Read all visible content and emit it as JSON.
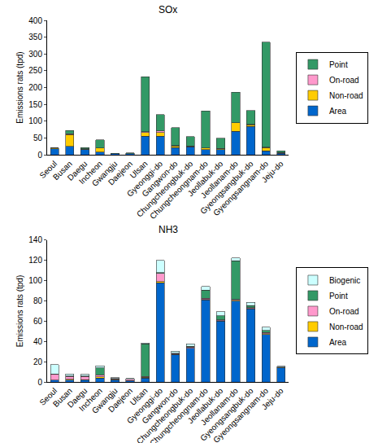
{
  "chart_data": [
    {
      "type": "bar",
      "title": "SOx",
      "y_label": "Emissions rats (tpd)",
      "stacked": true,
      "grid": false,
      "legend": "right",
      "categories": [
        "Seoul",
        "Busan",
        "Daegu",
        "Incheon",
        "Gwangju",
        "Daejeon",
        "Ulsan",
        "Gyeonggi-do",
        "Gangwon-do",
        "Chungcheongbuk-do",
        "Chungcheongnam-do",
        "Jeollabuk-do",
        "Jeollanam-do",
        "Gyeongsangbuk-do",
        "Gyeongsangnam-do",
        "Jeju-do"
      ],
      "ylim": [
        0,
        400
      ],
      "yticks": [
        0,
        50,
        100,
        150,
        200,
        250,
        300,
        350,
        400
      ],
      "series": [
        {
          "name": "Area",
          "color": "#0066cc",
          "values": [
            18,
            25,
            15,
            8,
            3,
            3,
            55,
            55,
            22,
            24,
            15,
            15,
            70,
            85,
            12,
            5
          ]
        },
        {
          "name": "Non-road",
          "color": "#ffcc00",
          "values": [
            2,
            35,
            2,
            12,
            0.5,
            0.5,
            12,
            12,
            5,
            2,
            5,
            3,
            25,
            5,
            10,
            2
          ]
        },
        {
          "name": "On-road",
          "color": "#ff99cc",
          "values": [
            1,
            3,
            1,
            1,
            0.5,
            0.5,
            2,
            4,
            1,
            1,
            1,
            1,
            1,
            1,
            1,
            0.5
          ]
        },
        {
          "name": "Point",
          "color": "#339966",
          "values": [
            0,
            10,
            4,
            24,
            1,
            2,
            163,
            49,
            53,
            27,
            110,
            31,
            90,
            41,
            312,
            4
          ]
        }
      ]
    },
    {
      "type": "bar",
      "title": "NH3",
      "y_label": "Emissions rats (tpd)",
      "stacked": true,
      "grid": false,
      "legend": "right",
      "categories": [
        "Seoul",
        "Busan",
        "Daegu",
        "Incheon",
        "Gwangju",
        "Daejeon",
        "Ulsan",
        "Gyeonggi-do",
        "Gangwon-do",
        "Chungcheongbuk-do",
        "Chungcheongnam-do",
        "Jeollabuk-do",
        "Jeollanam-do",
        "Gyeongsangbuk-do",
        "Gyeongsangnam-do",
        "Jeju-do"
      ],
      "ylim": [
        0,
        140
      ],
      "yticks": [
        0,
        20,
        40,
        60,
        80,
        100,
        120,
        140
      ],
      "series": [
        {
          "name": "Area",
          "color": "#0066cc",
          "values": [
            2,
            2,
            2,
            4,
            2,
            1.5,
            4,
            98,
            27,
            33,
            81,
            60,
            80,
            72,
            47,
            14
          ]
        },
        {
          "name": "Non-road",
          "color": "#ffcc00",
          "values": [
            0,
            0.5,
            0.3,
            1,
            0.1,
            0.1,
            0.5,
            1,
            0.3,
            0.3,
            0.5,
            0.5,
            0.5,
            0.5,
            0.5,
            0.2
          ]
        },
        {
          "name": "On-road",
          "color": "#ff99cc",
          "values": [
            6,
            3,
            3,
            2,
            1,
            1,
            1,
            8,
            0.7,
            1,
            1,
            1,
            1,
            1,
            1.5,
            0.3
          ]
        },
        {
          "name": "Point",
          "color": "#339966",
          "values": [
            0,
            0.5,
            0.5,
            7,
            0.2,
            0.2,
            32,
            1,
            0.5,
            1,
            8,
            4,
            38,
            2,
            2,
            0.3
          ]
        },
        {
          "name": "Biogenic",
          "color": "#ccffff",
          "values": [
            9,
            2,
            1.5,
            2,
            1,
            0.5,
            1,
            12,
            2,
            2.5,
            4,
            4,
            3,
            3,
            3,
            0.5
          ]
        }
      ]
    }
  ]
}
